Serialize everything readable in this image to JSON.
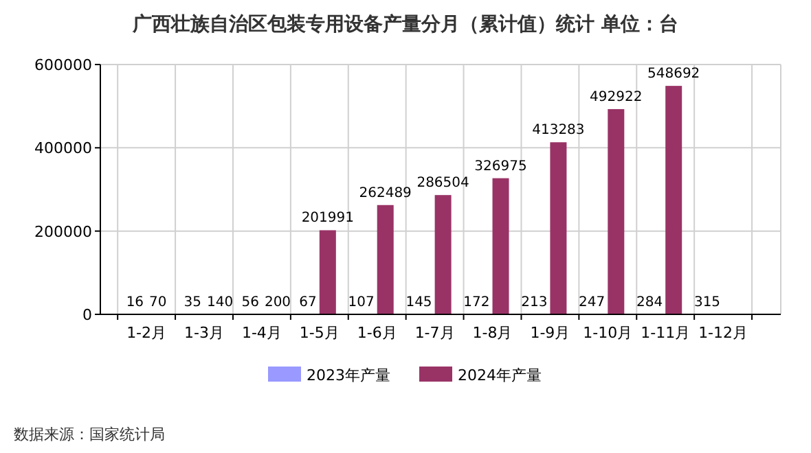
{
  "chart_data": {
    "type": "bar",
    "title": "广西壮族自治区包装专用设备产量分月（累计值）统计  单位：台",
    "categories": [
      "1-2月",
      "1-3月",
      "1-4月",
      "1-5月",
      "1-6月",
      "1-7月",
      "1-8月",
      "1-9月",
      "1-10月",
      "1-11月",
      "1-12月"
    ],
    "series": [
      {
        "name": "2023年产量",
        "color": "#9999ff",
        "values": [
          16,
          35,
          56,
          67,
          107,
          145,
          172,
          213,
          247,
          284,
          315
        ]
      },
      {
        "name": "2024年产量",
        "color": "#993366",
        "values": [
          70,
          140,
          200,
          201991,
          262489,
          286504,
          326975,
          413283,
          492922,
          548692,
          null
        ]
      }
    ],
    "ylim": [
      0,
      600000
    ],
    "yticks": [
      0,
      200000,
      400000,
      600000
    ],
    "grid": true,
    "legend": "bottom",
    "data_labels": true,
    "annotations": [
      "数据来源：国家统计局"
    ]
  }
}
